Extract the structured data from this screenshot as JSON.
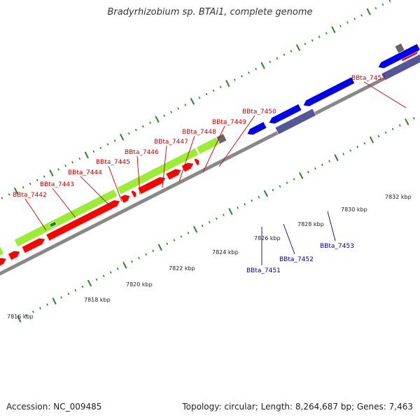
{
  "title": "Bradyrhizobium sp. BTAi1, complete genome",
  "accession": "Accession: NC_009485",
  "summary": "Topology: circular; Length: 8,264,687 bp; Genes: 7,463",
  "colors": {
    "forward_gene": "#ff0000",
    "reverse_gene": "#0000ee",
    "cds_forward": "#99ee33",
    "cds_reverse": "#555599",
    "backbone": "#888888",
    "tick": "#228822",
    "label_forward": "#cc0000",
    "label_reverse": "#000099"
  },
  "scale_labels": [
    "7816 kbp",
    "7818 kbp",
    "7820 kbp",
    "7822 kbp",
    "7824 kbp",
    "7826 kbp",
    "7828 kbp",
    "7830 kbp",
    "7832 kbp"
  ],
  "forward_labels": [
    "BBta_7442",
    "BBta_7443",
    "BBta_7444",
    "BBta_7445",
    "BBta_7446",
    "BBta_7447",
    "BBta_7448",
    "BBta_7449",
    "BBta_7450",
    "BBta_7457"
  ],
  "reverse_labels": [
    "BBta_7451",
    "BBta_7452",
    "BBta_7453"
  ]
}
